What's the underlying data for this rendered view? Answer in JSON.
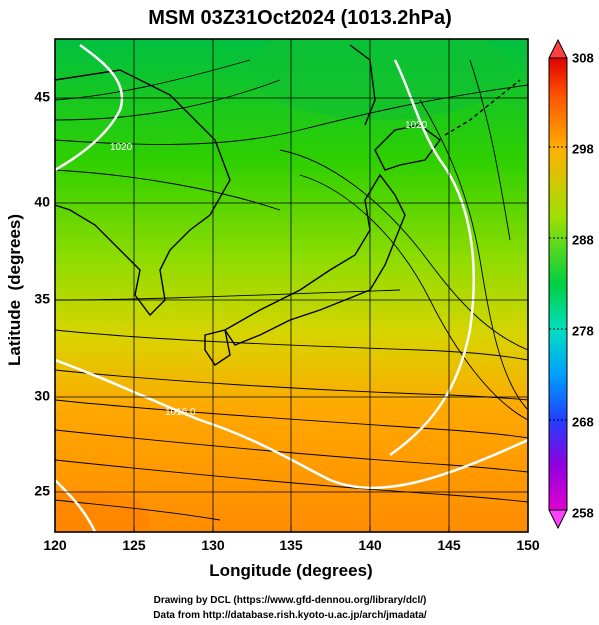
{
  "title": "MSM 03Z31Oct2024 (1013.2hPa)",
  "axes": {
    "xlabel": "Longitude (degrees)",
    "ylabel": "Latitude  (degrees)",
    "xlim": [
      120,
      150
    ],
    "ylim": [
      22.4,
      47.6
    ],
    "xticks": [
      "120",
      "125",
      "130",
      "135",
      "140",
      "145",
      "150"
    ],
    "yticks": [
      "25",
      "30",
      "35",
      "40",
      "45"
    ]
  },
  "colorbar": {
    "min": 258,
    "max": 308,
    "ticks": [
      "258",
      "268",
      "278",
      "288",
      "298",
      "308"
    ]
  },
  "isobar_labels": [
    "1020",
    "1016",
    "1016.0"
  ],
  "credits": {
    "line1": "Drawing by DCL (https://www.gfd-dennou.org/library/dcl/)",
    "line2": "Data from http://database.rish.kyoto-u.ac.jp/arch/jmadata/"
  },
  "colors": {
    "cold": "#00b050",
    "mid": "#a8dc00",
    "warm": "#ff9a00",
    "contour": "#ffffff"
  }
}
